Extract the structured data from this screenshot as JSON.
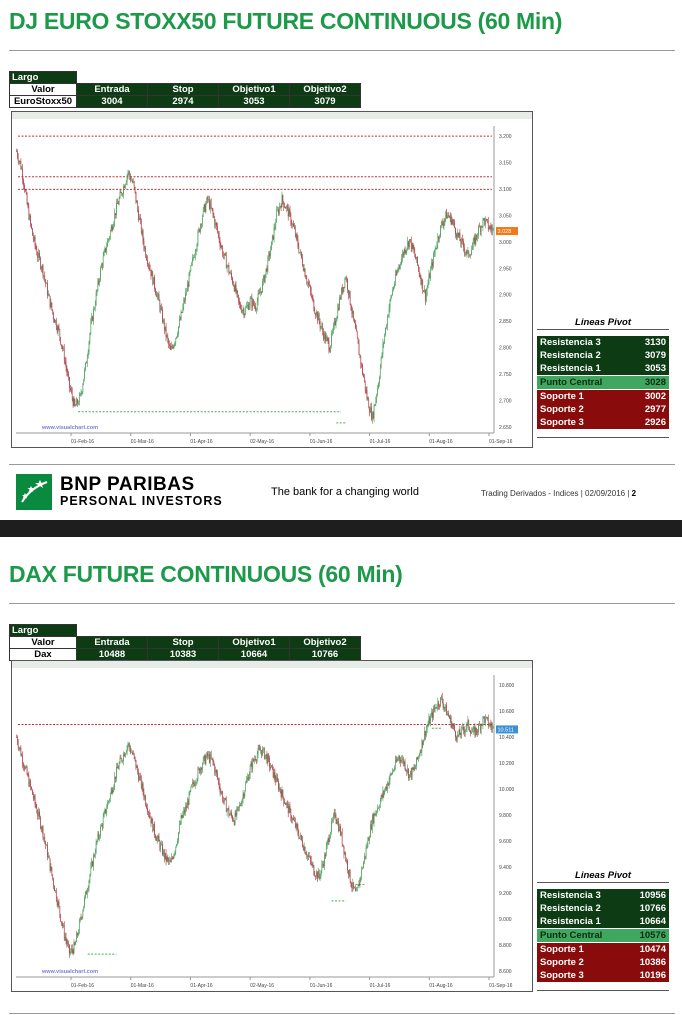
{
  "page1": {
    "title": "DJ EURO STOXX50 FUTURE CONTINUOUS (60 Min)",
    "params": {
      "largo": "Largo",
      "valor_label": "Valor",
      "headers": [
        "Entrada",
        "Stop",
        "Objetivo1",
        "Objetivo2"
      ],
      "instrument": "EuroStoxx50",
      "values": [
        "3004",
        "2974",
        "3053",
        "3079"
      ]
    },
    "chart_data": {
      "type": "candlestick",
      "title": "",
      "y_ticks": [
        "3.200",
        "3.150",
        "3.100",
        "3.050",
        "3.000",
        "2.950",
        "2.900",
        "2.850",
        "2.800",
        "2.750",
        "2.700",
        "2.650"
      ],
      "x_ticks": [
        "01-Feb-16",
        "01-Mar-16",
        "01-Apr-16",
        "02-May-16",
        "01-Jun-16",
        "01-Jul-16",
        "01-Aug-16",
        "01-Sep-16"
      ],
      "ylim": [
        2630,
        3235
      ],
      "last_price_label": "3.028",
      "last_price": 3028,
      "price_path": [
        3185,
        3150,
        3080,
        3020,
        2980,
        2950,
        2900,
        2860,
        2830,
        2780,
        2720,
        2680,
        2700,
        2760,
        2840,
        2900,
        2960,
        3000,
        3040,
        3080,
        3110,
        3145,
        3120,
        3060,
        3000,
        2960,
        2920,
        2880,
        2830,
        2790,
        2820,
        2860,
        2910,
        2960,
        3010,
        3060,
        3090,
        3060,
        3020,
        2980,
        2950,
        2920,
        2880,
        2870,
        2890,
        2880,
        2910,
        2950,
        3000,
        3060,
        3090,
        3070,
        3040,
        3000,
        2960,
        2920,
        2880,
        2850,
        2820,
        2800,
        2850,
        2900,
        2940,
        2880,
        2820,
        2760,
        2700,
        2660,
        2720,
        2800,
        2870,
        2920,
        2960,
        2990,
        3010,
        2980,
        2940,
        2900,
        2950,
        3000,
        3040,
        3060,
        3050,
        3020,
        3000,
        2980,
        3000,
        3030,
        3050,
        3035,
        3028
      ],
      "pivot_title": "Lineas Pivot",
      "pivot_rows": [
        {
          "name": "Resistencia 3",
          "value": "3130",
          "kind": "r"
        },
        {
          "name": "Resistencia 2",
          "value": "3079",
          "kind": "r"
        },
        {
          "name": "Resistencia 1",
          "value": "3053",
          "kind": "r"
        },
        {
          "name": "Punto Central",
          "value": "3028",
          "kind": "c"
        },
        {
          "name": "Soporte 1",
          "value": "3002",
          "kind": "s"
        },
        {
          "name": "Soporte 2",
          "value": "2977",
          "kind": "s"
        },
        {
          "name": "Soporte 3",
          "value": "2926",
          "kind": "s"
        }
      ],
      "watermark": "www.visualchart.com"
    },
    "footer": {
      "brand1": "BNP PARIBAS",
      "brand2": "PERSONAL INVESTORS",
      "tagline": "The bank for a changing world",
      "info": "Trading Derivados - Indices  |  02/09/2016  |",
      "page": "2"
    }
  },
  "page2": {
    "title": "DAX FUTURE CONTINUOUS (60 Min)",
    "params": {
      "largo": "Largo",
      "valor_label": "Valor",
      "headers": [
        "Entrada",
        "Stop",
        "Objetivo1",
        "Objetivo2"
      ],
      "instrument": "Dax",
      "values": [
        "10488",
        "10383",
        "10664",
        "10766"
      ]
    },
    "chart_data": {
      "type": "candlestick",
      "title": "",
      "y_ticks": [
        "10.800",
        "10.600",
        "10.400",
        "10.200",
        "10.000",
        "9.800",
        "9.600",
        "9.400",
        "9.200",
        "9.000",
        "8.800",
        "8.600"
      ],
      "x_ticks": [
        "01-Feb-16",
        "01-Mar-16",
        "01-Apr-16",
        "02-May-16",
        "01-Jun-16",
        "01-Jul-16",
        "01-Aug-16",
        "01-Sep-16"
      ],
      "ylim": [
        8560,
        10940
      ],
      "last_price_label": "10.511",
      "last_price": 10511,
      "price_path": [
        10450,
        10300,
        10150,
        10000,
        9850,
        9700,
        9500,
        9300,
        9100,
        8900,
        8750,
        8800,
        9000,
        9200,
        9400,
        9600,
        9750,
        9900,
        10050,
        10200,
        10300,
        10400,
        10300,
        10150,
        10000,
        9850,
        9700,
        9600,
        9500,
        9450,
        9600,
        9800,
        9900,
        10050,
        10150,
        10250,
        10300,
        10250,
        10100,
        9950,
        9850,
        9800,
        9900,
        10050,
        10200,
        10300,
        10350,
        10300,
        10200,
        10100,
        10000,
        9900,
        9800,
        9700,
        9600,
        9500,
        9400,
        9350,
        9500,
        9700,
        9850,
        9700,
        9500,
        9300,
        9200,
        9400,
        9600,
        9800,
        9900,
        10000,
        10100,
        10200,
        10300,
        10250,
        10150,
        10200,
        10350,
        10500,
        10600,
        10700,
        10750,
        10650,
        10550,
        10450,
        10500,
        10550,
        10480,
        10520,
        10600,
        10550,
        10511
      ],
      "pivot_title": "Lineas Pivot",
      "pivot_rows": [
        {
          "name": "Resistencia 3",
          "value": "10956",
          "kind": "r"
        },
        {
          "name": "Resistencia 2",
          "value": "10766",
          "kind": "r"
        },
        {
          "name": "Resistencia 1",
          "value": "10664",
          "kind": "r"
        },
        {
          "name": "Punto Central",
          "value": "10576",
          "kind": "c"
        },
        {
          "name": "Soporte 1",
          "value": "10474",
          "kind": "s"
        },
        {
          "name": "Soporte 2",
          "value": "10386",
          "kind": "s"
        },
        {
          "name": "Soporte 3",
          "value": "10196",
          "kind": "s"
        }
      ],
      "watermark": "www.visualchart.com"
    }
  },
  "colors": {
    "title_green": "#1c9a4a",
    "dark_green": "#0d3b13",
    "pivot_center": "#3fa75f",
    "pivot_support": "#8a0b0b",
    "resist_line": "#c0303a",
    "support_line": "#4caf50",
    "bull_candle": "#3c9a4f",
    "bear_candle": "#a8323a"
  }
}
